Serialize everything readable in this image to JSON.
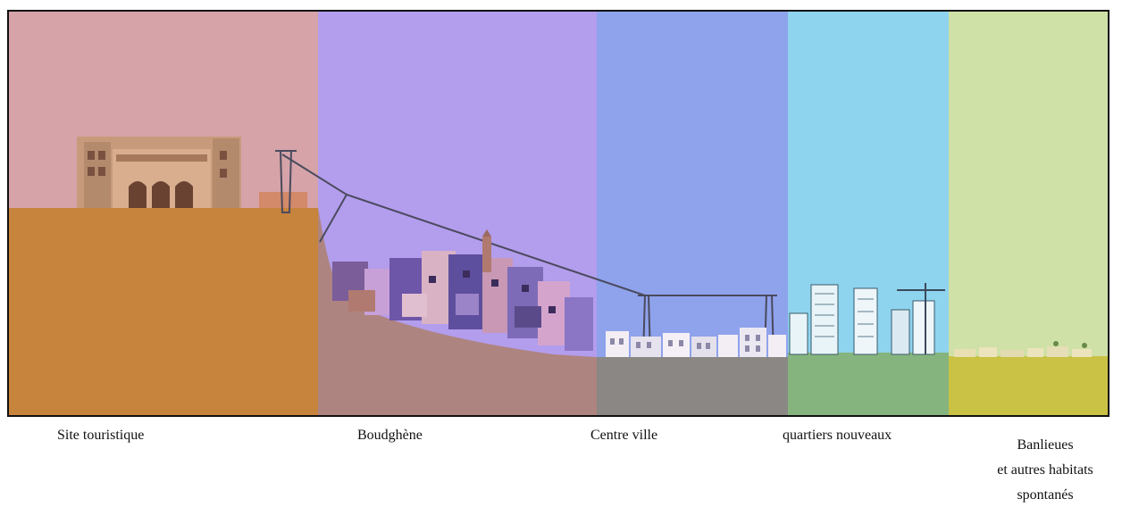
{
  "zones": [
    {
      "id": "site-touristique",
      "label": "Site touristique",
      "sky_color": "#d5a3a8",
      "ground_color": "#c7843d"
    },
    {
      "id": "boudghene",
      "label": "Boudghène",
      "sky_color": "#b39ded",
      "ground_color": "#ae8480"
    },
    {
      "id": "centre-ville",
      "label": "Centre ville",
      "sky_color": "#8fa2ec",
      "ground_color": "#8a8784"
    },
    {
      "id": "quartiers-nouveaux",
      "label": "quartiers nouveaux",
      "sky_color": "#8fd4ee",
      "ground_color": "#86b47e"
    },
    {
      "id": "banlieues",
      "label_lines": [
        "Banlieues",
        "et autres habitats",
        "spontanés"
      ],
      "sky_color": "#cfe1a6",
      "ground_color": "#c9c244"
    }
  ],
  "cable_color": "#4a4a5e",
  "icons": [
    "palace-building-icon",
    "cable-car-pylon-icon",
    "cable-car-line-icon",
    "old-town-houses-icon",
    "minaret-icon",
    "town-houses-icon",
    "tower-building-icon",
    "construction-crane-icon",
    "low-houses-icon"
  ]
}
